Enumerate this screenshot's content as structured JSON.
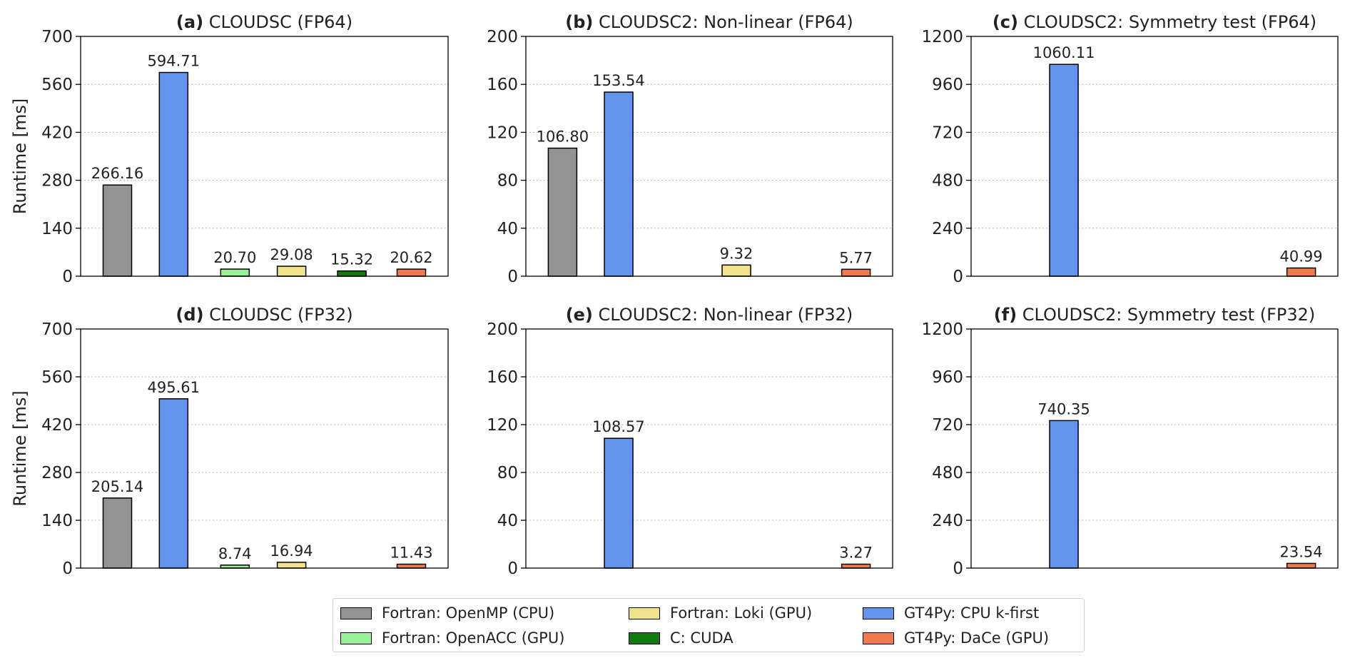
{
  "colors": {
    "Fortran: OpenMP (CPU)": "#939393",
    "Fortran: OpenACC (GPU)": "#98f198",
    "Fortran: Loki (GPU)": "#efe48c",
    "C: CUDA": "#117a11",
    "GT4Py: CPU k-first": "#6495ed",
    "GT4Py: DaCe (GPU)": "#f07a4b"
  },
  "legend": {
    "items": [
      {
        "label": "Fortran: OpenMP (CPU)",
        "color": "#939393"
      },
      {
        "label": "Fortran: OpenACC (GPU)",
        "color": "#98f198"
      },
      {
        "label": "Fortran: Loki (GPU)",
        "color": "#efe48c"
      },
      {
        "label": "C: CUDA",
        "color": "#117a11"
      },
      {
        "label": "GT4Py: CPU k-first",
        "color": "#6495ed"
      },
      {
        "label": "GT4Py: DaCe (GPU)",
        "color": "#f07a4b"
      }
    ]
  },
  "chart_data": [
    {
      "type": "bar",
      "panel": "(a)",
      "title": "CLOUDSC (FP64)",
      "ylabel": "Runtime [ms]",
      "xlabel": "",
      "ylim": [
        0,
        700
      ],
      "yticks": [
        0,
        140,
        280,
        420,
        560,
        700
      ],
      "grid": "y-dotted",
      "bars": [
        {
          "series": "Fortran: OpenMP (CPU)",
          "value": 266.16,
          "label": "266.16"
        },
        {
          "series": "GT4Py: CPU k-first",
          "value": 594.71,
          "label": "594.71"
        },
        {
          "series": "Fortran: OpenACC (GPU)",
          "value": 20.7,
          "label": "20.70"
        },
        {
          "series": "Fortran: Loki (GPU)",
          "value": 29.08,
          "label": "29.08"
        },
        {
          "series": "C: CUDA",
          "value": 15.32,
          "label": "15.32"
        },
        {
          "series": "GT4Py: DaCe (GPU)",
          "value": 20.62,
          "label": "20.62"
        }
      ]
    },
    {
      "type": "bar",
      "panel": "(b)",
      "title": "CLOUDSC2: Non-linear (FP64)",
      "ylabel": "",
      "xlabel": "",
      "ylim": [
        0,
        200
      ],
      "yticks": [
        0,
        40,
        80,
        120,
        160,
        200
      ],
      "grid": "y-dotted",
      "bars": [
        {
          "series": "Fortran: OpenMP (CPU)",
          "value": 106.8,
          "label": "106.80"
        },
        {
          "series": "GT4Py: CPU k-first",
          "value": 153.54,
          "label": "153.54"
        },
        {
          "series": "Fortran: OpenACC (GPU)",
          "value": null,
          "label": ""
        },
        {
          "series": "Fortran: Loki (GPU)",
          "value": 9.32,
          "label": "9.32"
        },
        {
          "series": "C: CUDA",
          "value": null,
          "label": ""
        },
        {
          "series": "GT4Py: DaCe (GPU)",
          "value": 5.77,
          "label": "5.77"
        }
      ]
    },
    {
      "type": "bar",
      "panel": "(c)",
      "title": "CLOUDSC2: Symmetry test (FP64)",
      "ylabel": "",
      "xlabel": "",
      "ylim": [
        0,
        1200
      ],
      "yticks": [
        0,
        240,
        480,
        720,
        960,
        1200
      ],
      "grid": "y-dotted",
      "bars": [
        {
          "series": "Fortran: OpenMP (CPU)",
          "value": null,
          "label": ""
        },
        {
          "series": "GT4Py: CPU k-first",
          "value": 1060.11,
          "label": "1060.11"
        },
        {
          "series": "Fortran: OpenACC (GPU)",
          "value": null,
          "label": ""
        },
        {
          "series": "Fortran: Loki (GPU)",
          "value": null,
          "label": ""
        },
        {
          "series": "C: CUDA",
          "value": null,
          "label": ""
        },
        {
          "series": "GT4Py: DaCe (GPU)",
          "value": 40.99,
          "label": "40.99"
        }
      ]
    },
    {
      "type": "bar",
      "panel": "(d)",
      "title": "CLOUDSC (FP32)",
      "ylabel": "Runtime [ms]",
      "xlabel": "",
      "ylim": [
        0,
        700
      ],
      "yticks": [
        0,
        140,
        280,
        420,
        560,
        700
      ],
      "grid": "y-dotted",
      "bars": [
        {
          "series": "Fortran: OpenMP (CPU)",
          "value": 205.14,
          "label": "205.14"
        },
        {
          "series": "GT4Py: CPU k-first",
          "value": 495.61,
          "label": "495.61"
        },
        {
          "series": "Fortran: OpenACC (GPU)",
          "value": 8.74,
          "label": "8.74"
        },
        {
          "series": "Fortran: Loki (GPU)",
          "value": 16.94,
          "label": "16.94"
        },
        {
          "series": "C: CUDA",
          "value": null,
          "label": ""
        },
        {
          "series": "GT4Py: DaCe (GPU)",
          "value": 11.43,
          "label": "11.43"
        }
      ]
    },
    {
      "type": "bar",
      "panel": "(e)",
      "title": "CLOUDSC2: Non-linear (FP32)",
      "ylabel": "",
      "xlabel": "",
      "ylim": [
        0,
        200
      ],
      "yticks": [
        0,
        40,
        80,
        120,
        160,
        200
      ],
      "grid": "y-dotted",
      "bars": [
        {
          "series": "Fortran: OpenMP (CPU)",
          "value": null,
          "label": ""
        },
        {
          "series": "GT4Py: CPU k-first",
          "value": 108.57,
          "label": "108.57"
        },
        {
          "series": "Fortran: OpenACC (GPU)",
          "value": null,
          "label": ""
        },
        {
          "series": "Fortran: Loki (GPU)",
          "value": null,
          "label": ""
        },
        {
          "series": "C: CUDA",
          "value": null,
          "label": ""
        },
        {
          "series": "GT4Py: DaCe (GPU)",
          "value": 3.27,
          "label": "3.27"
        }
      ]
    },
    {
      "type": "bar",
      "panel": "(f)",
      "title": "CLOUDSC2: Symmetry test (FP32)",
      "ylabel": "",
      "xlabel": "",
      "ylim": [
        0,
        1200
      ],
      "yticks": [
        0,
        240,
        480,
        720,
        960,
        1200
      ],
      "grid": "y-dotted",
      "bars": [
        {
          "series": "Fortran: OpenMP (CPU)",
          "value": null,
          "label": ""
        },
        {
          "series": "GT4Py: CPU k-first",
          "value": 740.35,
          "label": "740.35"
        },
        {
          "series": "Fortran: OpenACC (GPU)",
          "value": null,
          "label": ""
        },
        {
          "series": "Fortran: Loki (GPU)",
          "value": null,
          "label": ""
        },
        {
          "series": "C: CUDA",
          "value": null,
          "label": ""
        },
        {
          "series": "GT4Py: DaCe (GPU)",
          "value": 23.54,
          "label": "23.54"
        }
      ]
    }
  ]
}
